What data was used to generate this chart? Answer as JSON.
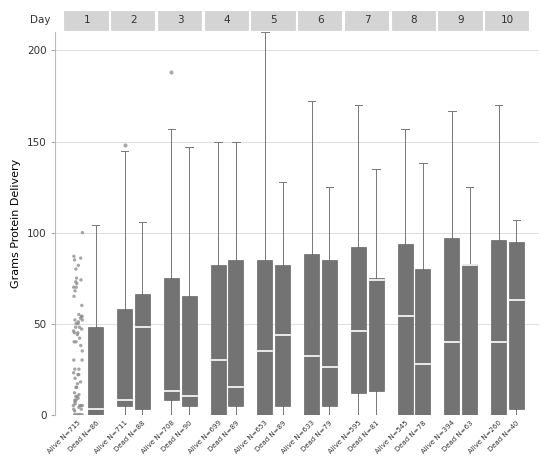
{
  "days": [
    1,
    2,
    3,
    4,
    5,
    6,
    7,
    8,
    9,
    10
  ],
  "alive_labels": [
    "Alive N=715",
    "Alive N=711",
    "Alive N=708",
    "Alive N=699",
    "Alive N=653",
    "Alive N=633",
    "Alive N=595",
    "Alive N=545",
    "Alive N=394",
    "Alive N=260"
  ],
  "dead_labels": [
    "Dead N=86",
    "Dead N=88",
    "Dead N=90",
    "Dead N=89",
    "Dead N=89",
    "Dead N=79",
    "Dead N=81",
    "Dead N=78",
    "Dead N=63",
    "Dead N=40"
  ],
  "box_color": "#737373",
  "median_color": "#ffffff",
  "scatter_color": "#888888",
  "bg_color": "#ffffff",
  "strip_color": "#d4d4d4",
  "grid_color": "#e0e0e0",
  "ylabel": "Grams Protein Delivery",
  "ylim": [
    0,
    210
  ],
  "yticks": [
    0,
    50,
    100,
    150,
    200
  ],
  "alive_boxstats": [
    {
      "med": 3,
      "q1": 0,
      "q3": 5,
      "whislo": 0,
      "whishi": 5,
      "fliers": []
    },
    {
      "med": 8,
      "q1": 5,
      "q3": 58,
      "whislo": 0,
      "whishi": 145,
      "fliers": [
        148
      ]
    },
    {
      "med": 13,
      "q1": 8,
      "q3": 75,
      "whislo": 0,
      "whishi": 157,
      "fliers": [
        188
      ]
    },
    {
      "med": 30,
      "q1": 0,
      "q3": 82,
      "whislo": 0,
      "whishi": 150,
      "fliers": []
    },
    {
      "med": 35,
      "q1": 0,
      "q3": 85,
      "whislo": 0,
      "whishi": 210,
      "fliers": []
    },
    {
      "med": 32,
      "q1": 0,
      "q3": 88,
      "whislo": 0,
      "whishi": 172,
      "fliers": []
    },
    {
      "med": 46,
      "q1": 12,
      "q3": 92,
      "whislo": 0,
      "whishi": 170,
      "fliers": []
    },
    {
      "med": 54,
      "q1": 0,
      "q3": 94,
      "whislo": 0,
      "whishi": 157,
      "fliers": []
    },
    {
      "med": 40,
      "q1": 0,
      "q3": 97,
      "whislo": 0,
      "whishi": 167,
      "fliers": []
    },
    {
      "med": 40,
      "q1": 0,
      "q3": 96,
      "whislo": 0,
      "whishi": 170,
      "fliers": []
    }
  ],
  "dead_boxstats": [
    {
      "med": 3,
      "q1": 0,
      "q3": 48,
      "whislo": 0,
      "whishi": 104,
      "fliers": []
    },
    {
      "med": 48,
      "q1": 3,
      "q3": 66,
      "whislo": 0,
      "whishi": 106,
      "fliers": []
    },
    {
      "med": 10,
      "q1": 5,
      "q3": 65,
      "whislo": 0,
      "whishi": 147,
      "fliers": []
    },
    {
      "med": 15,
      "q1": 5,
      "q3": 85,
      "whislo": 0,
      "whishi": 150,
      "fliers": []
    },
    {
      "med": 44,
      "q1": 5,
      "q3": 82,
      "whislo": 0,
      "whishi": 128,
      "fliers": []
    },
    {
      "med": 26,
      "q1": 5,
      "q3": 85,
      "whislo": 0,
      "whishi": 125,
      "fliers": []
    },
    {
      "med": 74,
      "q1": 13,
      "q3": 75,
      "whislo": 0,
      "whishi": 135,
      "fliers": []
    },
    {
      "med": 28,
      "q1": 0,
      "q3": 80,
      "whislo": 0,
      "whishi": 138,
      "fliers": []
    },
    {
      "med": 82,
      "q1": 0,
      "q3": 83,
      "whislo": 0,
      "whishi": 125,
      "fliers": []
    },
    {
      "med": 63,
      "q1": 3,
      "q3": 95,
      "whislo": 0,
      "whishi": 107,
      "fliers": []
    }
  ],
  "day1_scatter": [
    0,
    0,
    0,
    0,
    0,
    2,
    3,
    3,
    4,
    5,
    5,
    5,
    5,
    6,
    7,
    8,
    8,
    9,
    10,
    10,
    11,
    12,
    15,
    15,
    17,
    18,
    20,
    22,
    22,
    23,
    25,
    25,
    30,
    30,
    35,
    38,
    40,
    40,
    42,
    44,
    45,
    45,
    46,
    47,
    48,
    48,
    50,
    50,
    51,
    52,
    52,
    53,
    54,
    54,
    55,
    60,
    65,
    68,
    70,
    70,
    72,
    73,
    74,
    75,
    80,
    82,
    85,
    86,
    87,
    100
  ]
}
